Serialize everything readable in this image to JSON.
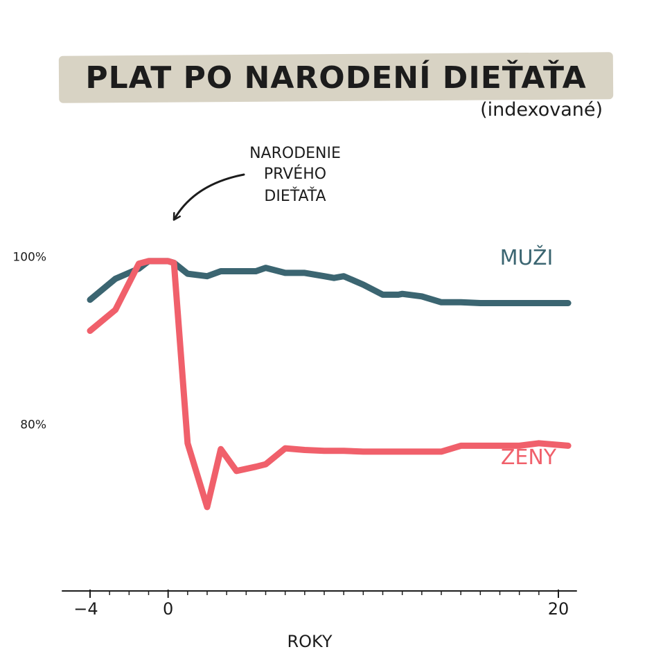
{
  "title": "PLAT PO NARODENÍ DIEŤAŤA",
  "subtitle": "(indexované)",
  "colors": {
    "men": "#3b6571",
    "women": "#f0606b",
    "title_band": "#d8d3c4",
    "ink": "#1c1c1c"
  },
  "chart_data": {
    "type": "line",
    "title": "PLAT PO NARODENÍ DIEŤAŤA",
    "subtitle": "(indexované)",
    "xlabel": "ROKY",
    "ylabel": "",
    "xlim": [
      -4,
      20
    ],
    "ylim": [
      60,
      104
    ],
    "x_ticks": [
      -4,
      0,
      20
    ],
    "x_minor_ticks": [
      -3,
      -2,
      -1,
      1,
      2,
      3,
      4,
      5,
      6,
      7,
      8,
      9,
      10,
      11,
      12,
      13,
      14,
      15,
      16,
      17,
      18,
      19
    ],
    "y_ticks": [
      {
        "value": 80,
        "label": "80%"
      },
      {
        "value": 100,
        "label": "100%"
      }
    ],
    "annotation": {
      "lines": [
        "NARODENIE",
        "PRVÉHO",
        "DIEŤAŤA"
      ],
      "x": 0,
      "y": 100
    },
    "series": [
      {
        "name": "MUŽI",
        "color": "#3b6571",
        "x": [
          -4,
          -2.7,
          -1.5,
          -1,
          0,
          0.3,
          1,
          2,
          2.7,
          3.5,
          4.5,
          5,
          6,
          7,
          8,
          8.5,
          9,
          10,
          11,
          11.8,
          12,
          13,
          14,
          15,
          16,
          17,
          18,
          19,
          20.5
        ],
        "y": [
          94.7,
          97.2,
          98.4,
          99.3,
          99.3,
          99.1,
          97.8,
          97.5,
          98.1,
          98.1,
          98.1,
          98.5,
          97.9,
          97.9,
          97.5,
          97.3,
          97.5,
          96.5,
          95.3,
          95.3,
          95.4,
          95.1,
          94.4,
          94.4,
          94.3,
          94.3,
          94.3,
          94.3,
          94.3
        ]
      },
      {
        "name": "ŽENY",
        "color": "#f0606b",
        "x": [
          -4,
          -2.7,
          -1.5,
          -1,
          0,
          0.3,
          1,
          2,
          2.7,
          3.5,
          4.5,
          5,
          6,
          7,
          8,
          9,
          10,
          11,
          12,
          13,
          14,
          15,
          16,
          17,
          18,
          19,
          20.5
        ],
        "y": [
          91,
          93.5,
          99,
          99.3,
          99.3,
          99.1,
          77.6,
          70,
          76.9,
          74.3,
          74.8,
          75.1,
          77,
          76.8,
          76.7,
          76.7,
          76.6,
          76.6,
          76.6,
          76.6,
          76.6,
          77.3,
          77.3,
          77.3,
          77.3,
          77.6,
          77.3
        ]
      }
    ]
  }
}
